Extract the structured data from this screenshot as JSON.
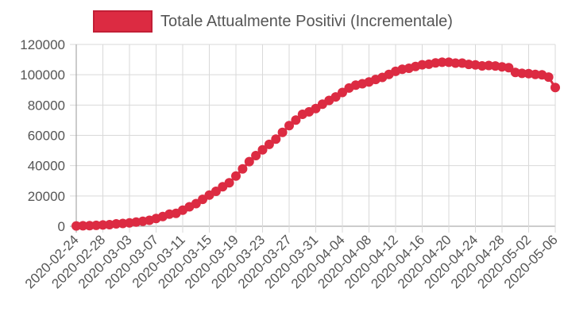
{
  "chart_data": {
    "type": "line",
    "title": "",
    "xlabel": "",
    "ylabel": "",
    "ylim": [
      0,
      120000
    ],
    "yticks": [
      0,
      20000,
      40000,
      60000,
      80000,
      100000,
      120000
    ],
    "grid": true,
    "legend_position": "top",
    "series": [
      {
        "name": "Totale Attualmente Positivi (Incrementale)",
        "color": "#dc2b42",
        "x": [
          "2020-02-24",
          "2020-02-25",
          "2020-02-26",
          "2020-02-27",
          "2020-02-28",
          "2020-02-29",
          "2020-03-01",
          "2020-03-02",
          "2020-03-03",
          "2020-03-04",
          "2020-03-05",
          "2020-03-06",
          "2020-03-07",
          "2020-03-08",
          "2020-03-09",
          "2020-03-10",
          "2020-03-11",
          "2020-03-12",
          "2020-03-13",
          "2020-03-14",
          "2020-03-15",
          "2020-03-16",
          "2020-03-17",
          "2020-03-18",
          "2020-03-19",
          "2020-03-20",
          "2020-03-21",
          "2020-03-22",
          "2020-03-23",
          "2020-03-24",
          "2020-03-25",
          "2020-03-26",
          "2020-03-27",
          "2020-03-28",
          "2020-03-29",
          "2020-03-30",
          "2020-03-31",
          "2020-04-01",
          "2020-04-02",
          "2020-04-03",
          "2020-04-04",
          "2020-04-05",
          "2020-04-06",
          "2020-04-07",
          "2020-04-08",
          "2020-04-09",
          "2020-04-10",
          "2020-04-11",
          "2020-04-12",
          "2020-04-13",
          "2020-04-14",
          "2020-04-15",
          "2020-04-16",
          "2020-04-17",
          "2020-04-18",
          "2020-04-19",
          "2020-04-20",
          "2020-04-21",
          "2020-04-22",
          "2020-04-23",
          "2020-04-24",
          "2020-04-25",
          "2020-04-26",
          "2020-04-27",
          "2020-04-28",
          "2020-04-29",
          "2020-04-30",
          "2020-05-01",
          "2020-05-02",
          "2020-05-03",
          "2020-05-04",
          "2020-05-05",
          "2020-05-06"
        ],
        "values": [
          221,
          311,
          385,
          588,
          821,
          1049,
          1577,
          1835,
          2263,
          2706,
          3296,
          3916,
          5061,
          6387,
          7985,
          8514,
          10590,
          12839,
          14955,
          17750,
          20603,
          23073,
          26062,
          28710,
          33190,
          37860,
          42681,
          46638,
          50418,
          54030,
          57521,
          62013,
          66414,
          70065,
          73880,
          75528,
          77635,
          80572,
          83049,
          85388,
          88274,
          91246,
          93187,
          94067,
          95262,
          96877,
          98273,
          100269,
          102253,
          103616,
          104291,
          105418,
          106607,
          106962,
          107771,
          108257,
          108237,
          107709,
          107699,
          106848,
          106527,
          105847,
          106103,
          105813,
          105205,
          104657,
          101551,
          100943,
          100704,
          100179,
          99980,
          98467,
          91528
        ]
      }
    ],
    "x_tick_labels": [
      "2020-02-24",
      "2020-02-28",
      "2020-03-03",
      "2020-03-07",
      "2020-03-11",
      "2020-03-15",
      "2020-03-19",
      "2020-03-23",
      "2020-03-27",
      "2020-03-31",
      "2020-04-04",
      "2020-04-08",
      "2020-04-12",
      "2020-04-16",
      "2020-04-20",
      "2020-04-24",
      "2020-04-28",
      "2020-05-02",
      "2020-05-06"
    ]
  }
}
